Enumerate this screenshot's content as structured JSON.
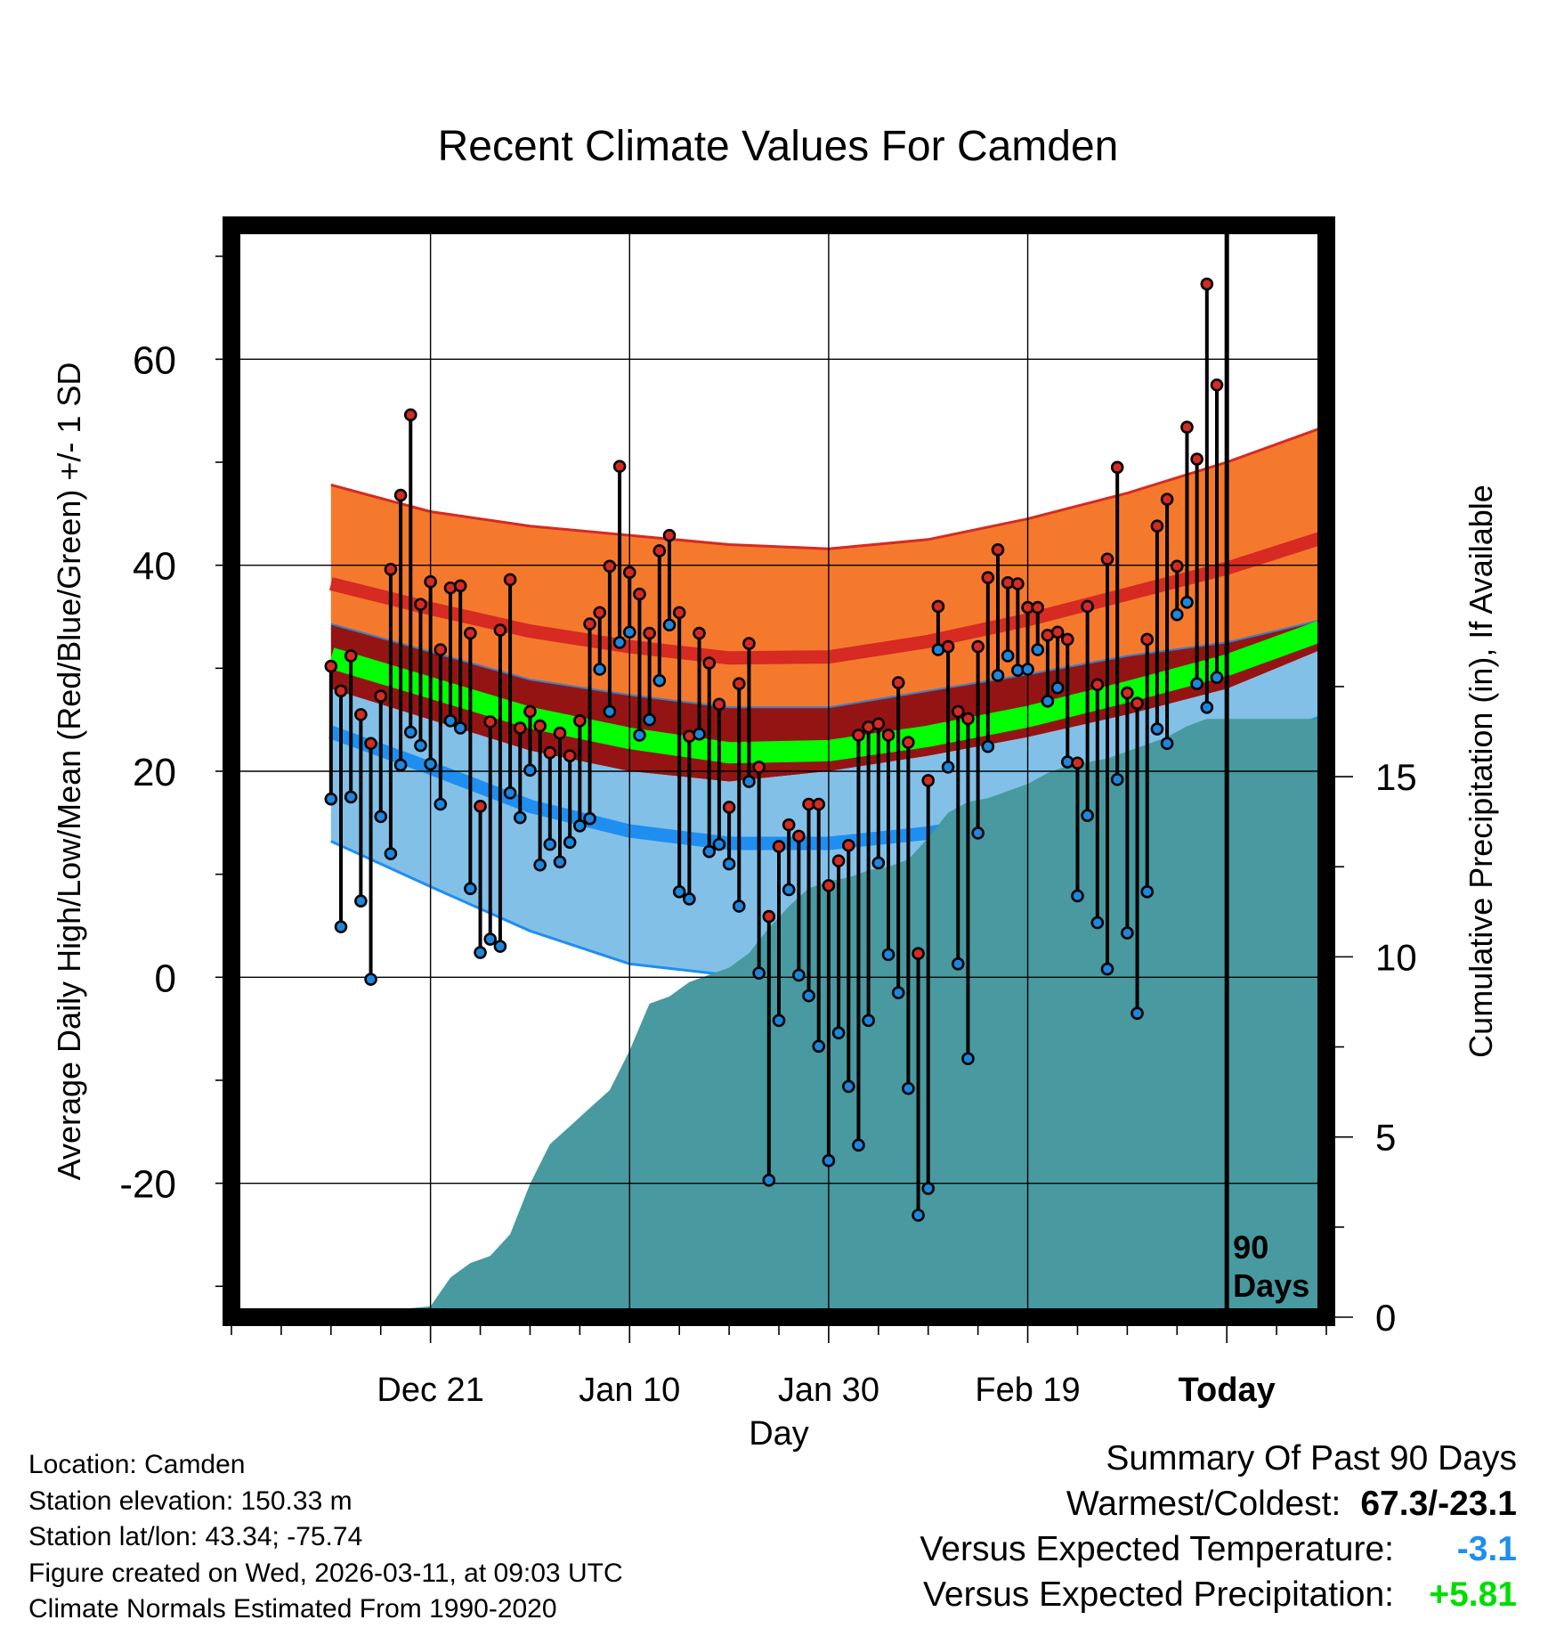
{
  "chart_data": {
    "type": "line",
    "title": "Recent Climate Values For Camden",
    "xlabel": "Day",
    "ylabel": "Average Daily High/Low/Mean (Red/Blue/Green) +/- 1 SD",
    "y2label": "Cumulative Precipitation (in), If Available",
    "xlim": [
      -10,
      100
    ],
    "ylim": [
      -33,
      73
    ],
    "y2lim": [
      0,
      30.3
    ],
    "x_ticks": [
      {
        "x": 10,
        "label": "Dec 21"
      },
      {
        "x": 30,
        "label": "Jan 10"
      },
      {
        "x": 50,
        "label": "Jan 30"
      },
      {
        "x": 70,
        "label": "Feb 19"
      },
      {
        "x": 90,
        "label": "Today"
      }
    ],
    "y_ticks": [
      {
        "y": 60,
        "label": "60"
      },
      {
        "y": 40,
        "label": "40"
      },
      {
        "y": 20,
        "label": "20"
      },
      {
        "y": 0,
        "label": "0"
      },
      {
        "y": -20,
        "label": "-20"
      }
    ],
    "y2_ticks": [
      {
        "y": 15,
        "label": "15"
      },
      {
        "y": 10,
        "label": "10"
      },
      {
        "y": 5,
        "label": "5"
      },
      {
        "y": 0,
        "label": "0"
      }
    ],
    "today_marker": {
      "x": 90,
      "label_line1": "90",
      "label_line2": "Days"
    },
    "normals": {
      "x": [
        0,
        10,
        20,
        30,
        40,
        50,
        60,
        70,
        80,
        90,
        100
      ],
      "high_mean": [
        38.2,
        35.8,
        33.6,
        32.1,
        31.0,
        31.1,
        32.6,
        34.7,
        37.2,
        39.7,
        42.8
      ],
      "high_sd_upper": [
        47.8,
        45.2,
        43.8,
        42.9,
        42.0,
        41.6,
        42.5,
        44.5,
        47.0,
        50.0,
        53.5
      ],
      "low_mean": [
        23.8,
        20.3,
        16.6,
        14.2,
        13.0,
        13.0,
        14.0,
        15.6,
        18.0,
        21.0,
        25.0
      ],
      "low_sd_lower": [
        13.2,
        8.8,
        4.5,
        1.3,
        0.2,
        0.4,
        1.9,
        3.7,
        6.8,
        10.3,
        14.8
      ],
      "mean_line": [
        31.0,
        28.1,
        25.2,
        23.2,
        21.8,
        22.0,
        23.4,
        25.3,
        27.7,
        30.3,
        33.8
      ],
      "mean_band_upper": [
        34.3,
        31.6,
        28.9,
        27.4,
        26.2,
        26.2,
        27.8,
        29.4,
        31.2,
        32.5,
        34.8
      ],
      "mean_band_lower": [
        28.0,
        25.0,
        22.0,
        20.0,
        19.0,
        20.0,
        21.5,
        23.3,
        25.5,
        28.0,
        32.0
      ]
    },
    "daily": {
      "highs": [
        30.2,
        27.8,
        31.2,
        25.5,
        22.7,
        27.3,
        39.6,
        46.8,
        54.6,
        36.2,
        38.4,
        31.8,
        37.8,
        38.0,
        33.4,
        16.6,
        24.8,
        33.7,
        38.6,
        24.2,
        25.8,
        24.4,
        21.8,
        23.7,
        21.5,
        24.9,
        34.3,
        35.4,
        39.9,
        49.6,
        39.3,
        37.2,
        33.4,
        41.4,
        42.9,
        35.4,
        23.4,
        33.4,
        30.5,
        26.5,
        16.5,
        28.5,
        32.4,
        20.4,
        5.9,
        12.7,
        14.8,
        13.7,
        16.8,
        16.8,
        8.9,
        11.3,
        12.8,
        23.5,
        24.3,
        24.6,
        23.5,
        28.6,
        22.8,
        2.3,
        19.1,
        36.0,
        32.1,
        25.8,
        25.1,
        32.1,
        38.8,
        41.5,
        38.3,
        38.2,
        35.9,
        35.9,
        33.2,
        33.5,
        32.8,
        20.8,
        36.0,
        28.4,
        40.6,
        49.5,
        27.6,
        26.6,
        32.8,
        43.8,
        46.4,
        39.9,
        53.4,
        50.3,
        67.3,
        57.5
      ],
      "lows": [
        17.3,
        4.9,
        17.5,
        7.4,
        -0.2,
        15.6,
        12.0,
        20.6,
        23.8,
        22.5,
        20.7,
        16.8,
        24.9,
        24.2,
        8.6,
        2.4,
        3.7,
        3.0,
        17.9,
        15.5,
        20.1,
        10.9,
        12.9,
        11.2,
        13.1,
        14.7,
        15.4,
        29.9,
        25.8,
        32.5,
        33.5,
        23.5,
        25.0,
        28.8,
        34.2,
        8.3,
        7.6,
        23.6,
        12.2,
        12.9,
        11.0,
        6.9,
        19.0,
        0.4,
        -19.7,
        -4.2,
        8.5,
        0.2,
        -1.8,
        -6.7,
        -17.8,
        -5.4,
        -10.6,
        -16.3,
        -4.2,
        11.1,
        2.2,
        -1.5,
        -10.8,
        -23.1,
        -20.5,
        31.8,
        20.4,
        1.3,
        -7.9,
        14.0,
        22.4,
        29.3,
        31.2,
        29.8,
        29.9,
        31.8,
        26.8,
        28.1,
        20.9,
        7.9,
        15.7,
        5.3,
        0.8,
        19.2,
        4.3,
        -3.5,
        8.3,
        24.1,
        22.7,
        35.2,
        36.4,
        28.5,
        26.2,
        29.1
      ]
    },
    "precipitation": {
      "x": [
        0,
        2,
        4,
        6,
        8,
        10,
        12,
        14,
        16,
        18,
        20,
        22,
        24,
        26,
        28,
        30,
        32,
        34,
        36,
        38,
        40,
        42,
        44,
        46,
        48,
        50,
        52,
        54,
        56,
        58,
        60,
        62,
        64,
        66,
        68,
        70,
        72,
        74,
        76,
        78,
        80,
        82,
        84,
        86,
        88,
        90,
        92,
        94,
        96,
        98,
        100
      ],
      "cumulative": [
        0,
        0.05,
        0.1,
        0.18,
        0.25,
        0.3,
        1.1,
        1.5,
        1.7,
        2.3,
        3.7,
        4.8,
        5.3,
        5.8,
        6.3,
        7.4,
        8.7,
        8.9,
        9.3,
        9.5,
        9.7,
        10.1,
        10.8,
        11.4,
        11.9,
        12.1,
        12.2,
        12.4,
        12.5,
        12.7,
        13.3,
        14.0,
        14.3,
        14.4,
        14.6,
        14.8,
        15.1,
        15.3,
        15.4,
        15.5,
        15.7,
        15.9,
        16.1,
        16.4,
        16.6,
        16.6,
        16.6,
        16.6,
        16.6,
        16.6,
        16.6
      ]
    }
  },
  "info": {
    "location": "Location: Camden",
    "elevation": "Station elevation: 150.33 m",
    "latlon": "Station lat/lon: 43.34; -75.74",
    "created": "Figure created on Wed, 2026-03-11, at 09:03 UTC",
    "normals": "Climate Normals Estimated From 1990-2020"
  },
  "summary": {
    "title": "Summary Of Past 90 Days",
    "warmest_label": "Warmest/Coldest:",
    "warmest_value": "67.3/-23.1",
    "temp_label": "Versus Expected Temperature:",
    "temp_value": "-3.1",
    "precip_label": "Versus Expected Precipitation:",
    "precip_value": "+5.81"
  },
  "colors": {
    "high_band": "#f5792d",
    "high_line": "#d62a22",
    "mean_band": "#941414",
    "mean_line": "#00ff00",
    "low_band": "#82c0e8",
    "low_line": "#1e8ef0",
    "precip": "#4899a0",
    "high_dot": "#d42b22",
    "low_dot": "#1e86dd",
    "temp_value": "#1e8ef0",
    "precip_value": "#00dd00"
  }
}
